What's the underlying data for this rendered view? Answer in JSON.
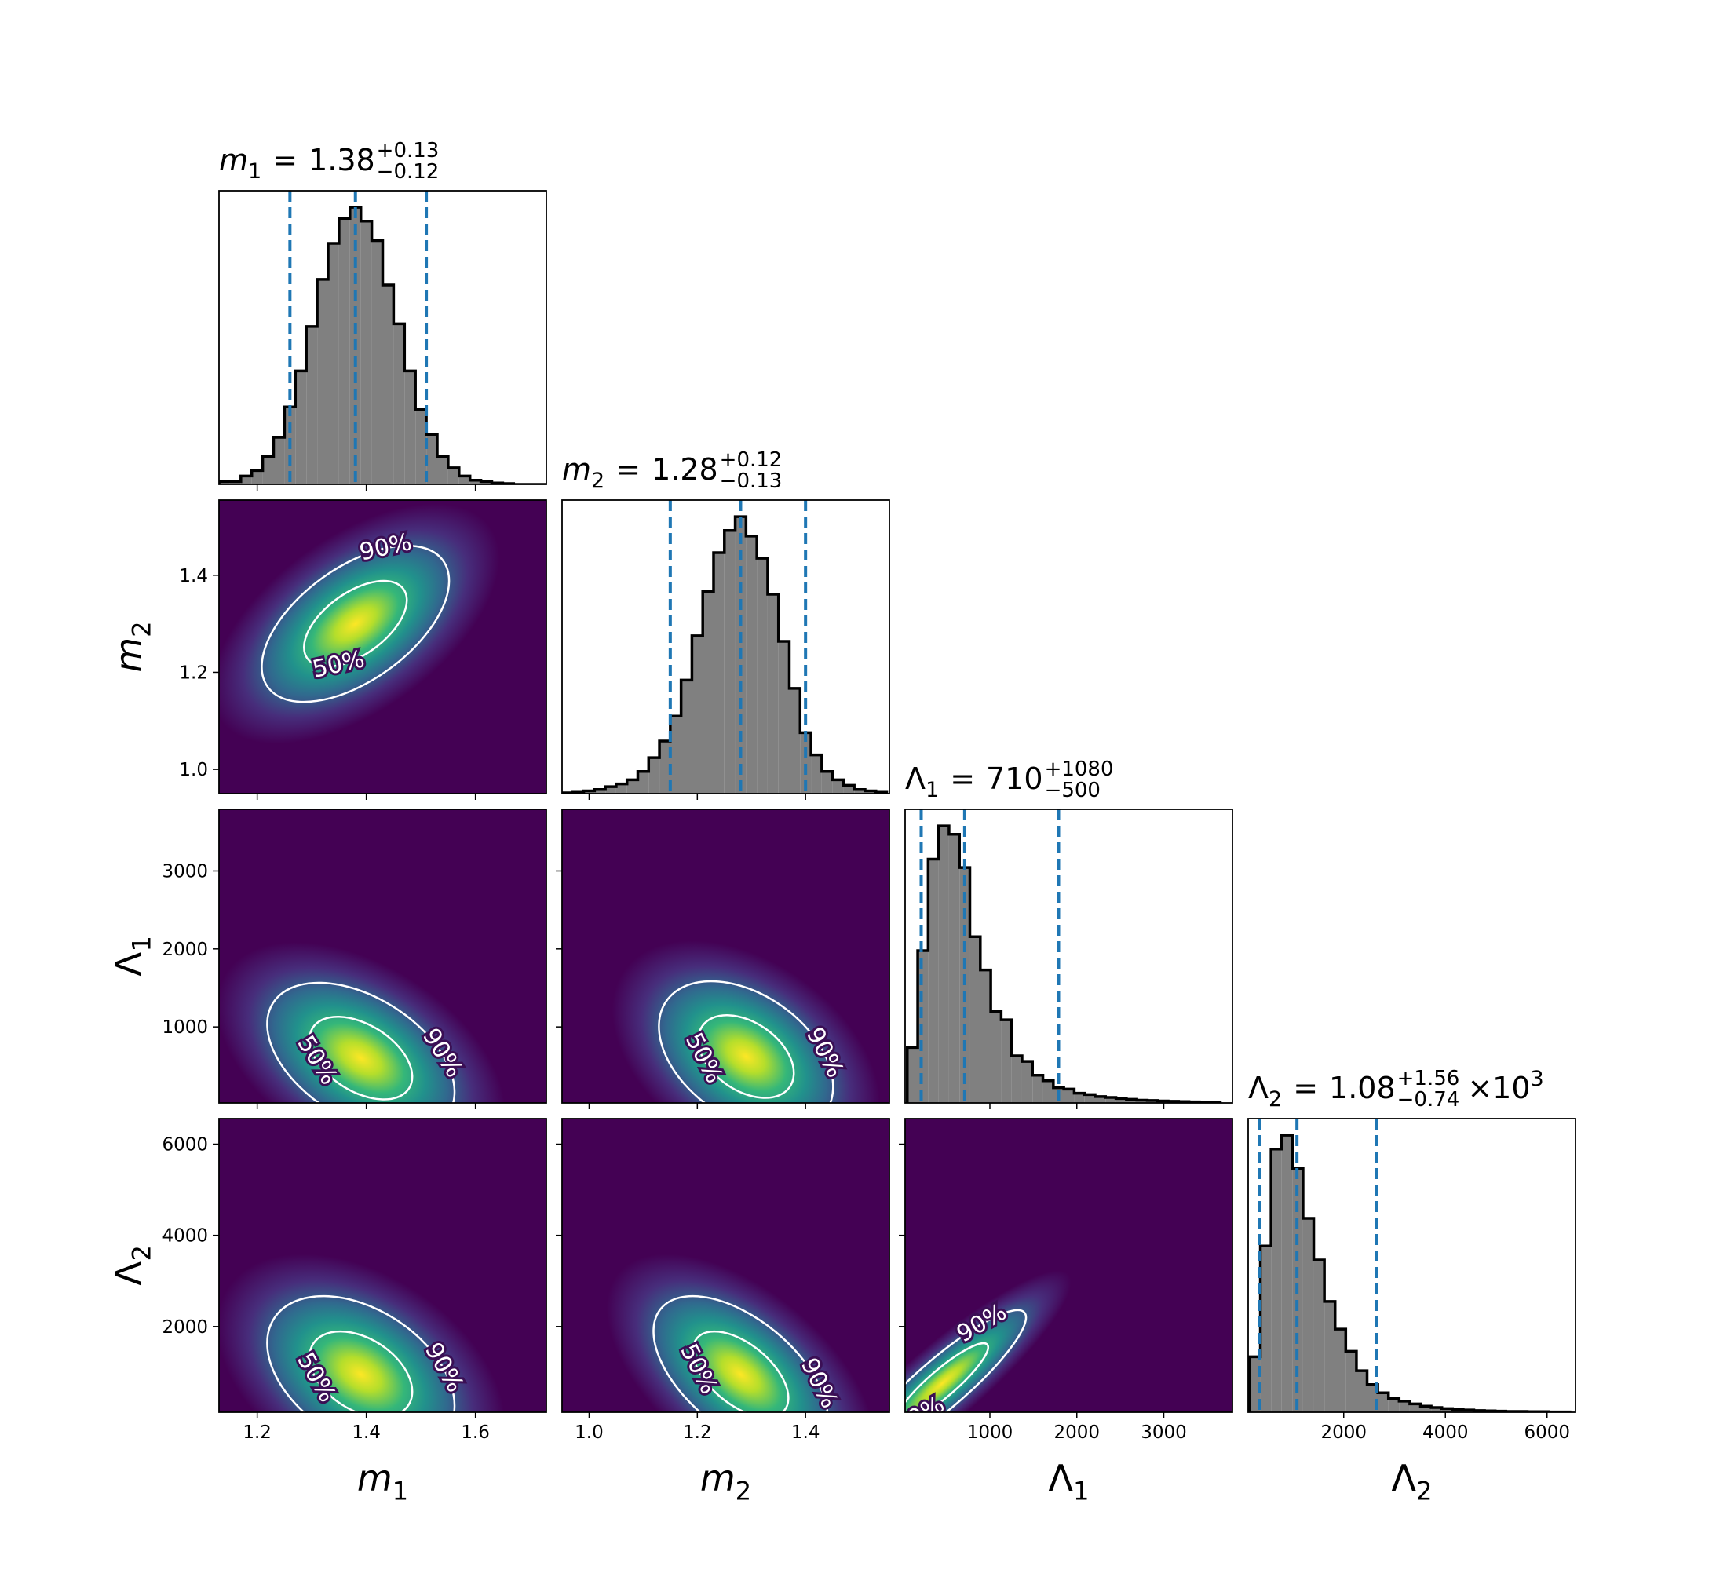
{
  "chart_data": {
    "type": "corner",
    "hist_color": "#808080",
    "hist_edge_color": "#000000",
    "quantile_color": "#1f77b4",
    "contour_color": "#ffffff",
    "density_colormap": "viridis",
    "parameters": [
      {
        "symbol": "m",
        "subscript": "1",
        "italic": true,
        "lim": [
          1.13,
          1.73
        ],
        "ticks": [
          1.2,
          1.4,
          1.6
        ],
        "title": {
          "relation": "=",
          "value": "1.38",
          "upper": "+0.13",
          "lower": "−0.12"
        },
        "quantiles": [
          1.26,
          1.38,
          1.51
        ],
        "hist_ylim": [
          0,
          106
        ],
        "bins": [
          1.13,
          1.15,
          1.17,
          1.19,
          1.21,
          1.23,
          1.25,
          1.27,
          1.29,
          1.31,
          1.33,
          1.35,
          1.37,
          1.39,
          1.41,
          1.43,
          1.45,
          1.47,
          1.49,
          1.51,
          1.53,
          1.55,
          1.57,
          1.59,
          1.61,
          1.63,
          1.65,
          1.67,
          1.69,
          1.71,
          1.73
        ],
        "values": [
          1,
          1,
          3,
          5,
          10,
          17,
          28,
          41,
          57,
          74,
          87,
          96,
          100,
          95,
          88,
          72,
          58,
          41,
          27,
          18,
          10,
          6,
          3,
          1.5,
          1,
          0.5,
          0.3,
          0,
          0,
          0
        ]
      },
      {
        "symbol": "m",
        "subscript": "2",
        "italic": true,
        "lim": [
          0.95,
          1.555
        ],
        "ticks": [
          {
            "value": 1,
            "label": "1.0"
          },
          1.2,
          1.4
        ],
        "title": {
          "relation": "=",
          "value": "1.28",
          "upper": "+0.12",
          "lower": "−0.13"
        },
        "quantiles": [
          1.15,
          1.28,
          1.4
        ],
        "hist_ylim": [
          0,
          106
        ],
        "bins": [
          0.95,
          0.97,
          0.99,
          1.01,
          1.03,
          1.05,
          1.07,
          1.09,
          1.11,
          1.13,
          1.15,
          1.17,
          1.19,
          1.21,
          1.23,
          1.25,
          1.27,
          1.29,
          1.31,
          1.33,
          1.35,
          1.37,
          1.39,
          1.41,
          1.43,
          1.45,
          1.47,
          1.49,
          1.51,
          1.53,
          1.55
        ],
        "values": [
          0.3,
          0.5,
          1,
          1.5,
          2.5,
          3.5,
          5,
          8,
          13,
          19,
          28,
          41,
          57,
          73,
          87,
          95,
          100,
          93,
          85,
          72,
          55,
          38,
          22,
          14,
          8,
          5,
          3,
          1.5,
          1,
          0.5
        ]
      },
      {
        "symbol": "Λ",
        "subscript": "1",
        "italic": false,
        "lim": [
          25,
          3790
        ],
        "ticks": [
          1000,
          2000,
          3000
        ],
        "title": {
          "relation": "=",
          "value": "710",
          "upper": "+1080",
          "lower": "−500"
        },
        "quantiles": [
          210,
          710,
          1790
        ],
        "hist_ylim": [
          0,
          106
        ],
        "bins": [
          50,
          170,
          290,
          410,
          530,
          650,
          770,
          890,
          1010,
          1130,
          1250,
          1370,
          1490,
          1610,
          1730,
          1850,
          1970,
          2090,
          2210,
          2330,
          2450,
          2570,
          2690,
          2810,
          2930,
          3050,
          3170,
          3290,
          3410,
          3530,
          3650
        ],
        "values": [
          20,
          55,
          88,
          100,
          97,
          85,
          60,
          48,
          33,
          30,
          17,
          15,
          10,
          8,
          5.5,
          5,
          3.5,
          3,
          2.3,
          2,
          1.6,
          1.3,
          1,
          0.9,
          0.7,
          0.6,
          0.5,
          0.4,
          0.3,
          0.3
        ]
      },
      {
        "symbol": "Λ",
        "subscript": "2",
        "italic": false,
        "lim": [
          120,
          6560
        ],
        "ticks": [
          2000,
          4000,
          6000
        ],
        "title": {
          "relation": "=",
          "value": "1.08",
          "upper": "+1.56",
          "lower": "−0.74",
          "multiplier": "×10",
          "exponent": "3"
        },
        "quantiles": [
          340,
          1080,
          2640
        ],
        "hist_ylim": [
          0,
          106
        ],
        "bins": [
          150,
          360,
          570,
          780,
          990,
          1200,
          1410,
          1620,
          1830,
          2040,
          2250,
          2460,
          2670,
          2880,
          3090,
          3300,
          3510,
          3720,
          3930,
          4140,
          4350,
          4560,
          4770,
          4980,
          5190,
          5400,
          5610,
          5820,
          6030,
          6240,
          6450
        ],
        "values": [
          20,
          60,
          95,
          100,
          88,
          70,
          55,
          40,
          30,
          22,
          15,
          10,
          7,
          5,
          4,
          3,
          2.2,
          1.7,
          1.3,
          1,
          0.8,
          0.6,
          0.5,
          0.4,
          0.3,
          0.3,
          0.2,
          0.2,
          0.1,
          0.1
        ]
      }
    ],
    "contour_levels": [
      {
        "value": 50,
        "label": "50%"
      },
      {
        "value": 90,
        "label": "90%"
      }
    ],
    "pairs": [
      {
        "mean": [
          1.38,
          1.3
        ],
        "sigma": [
          0.08,
          0.075
        ],
        "rho": 0.55
      },
      {
        "mean": [
          1.39,
          600
        ],
        "sigma": [
          0.08,
          450
        ],
        "rho": -0.45
      },
      {
        "mean": [
          1.29,
          620
        ],
        "sigma": [
          0.075,
          450
        ],
        "rho": -0.4
      },
      {
        "mean": [
          1.39,
          950
        ],
        "sigma": [
          0.08,
          800
        ],
        "rho": -0.4
      },
      {
        "mean": [
          1.28,
          950
        ],
        "sigma": [
          0.075,
          800
        ],
        "rho": -0.55
      },
      {
        "mean": [
          450,
          750
        ],
        "sigma": [
          450,
          750
        ],
        "rho": 0.9
      }
    ]
  }
}
